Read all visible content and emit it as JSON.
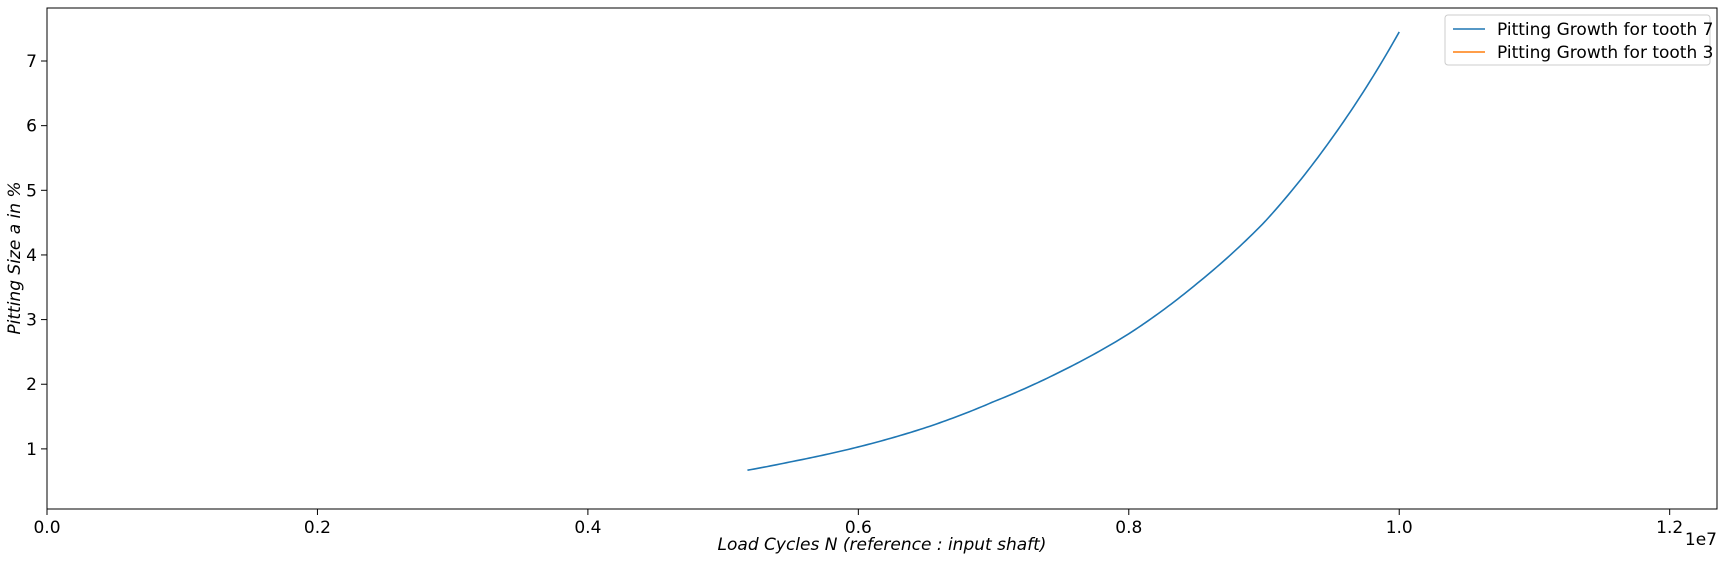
{
  "chart_data": {
    "type": "line",
    "title": "",
    "xlabel": "Load Cycles N (reference :  input shaft)",
    "ylabel": "Pitting Size a in %",
    "x_offset_label": "1e7",
    "xlim": [
      0,
      12350000
    ],
    "ylim": [
      0.07,
      7.82
    ],
    "x_ticks": [
      0,
      2000000,
      4000000,
      6000000,
      8000000,
      10000000,
      12000000
    ],
    "x_tick_labels": [
      "0.0",
      "0.2",
      "0.4",
      "0.6",
      "0.8",
      "1.0",
      "1.2"
    ],
    "y_ticks": [
      1,
      2,
      3,
      4,
      5,
      6,
      7
    ],
    "y_tick_labels": [
      "1",
      "2",
      "3",
      "4",
      "5",
      "6",
      "7"
    ],
    "grid": false,
    "legend_position": "upper right",
    "series": [
      {
        "name": "Pitting Growth for tooth 7",
        "color": "#1f77b4",
        "x": [
          5180000,
          5500000,
          6000000,
          6500000,
          7000000,
          7500000,
          8000000,
          8500000,
          9000000,
          9500000,
          10000000
        ],
        "y": [
          0.67,
          0.8,
          1.03,
          1.33,
          1.73,
          2.2,
          2.78,
          3.55,
          4.5,
          5.8,
          7.45
        ]
      },
      {
        "name": "Pitting Growth for tooth 3",
        "color": "#ff7f0e",
        "x": [],
        "y": []
      }
    ]
  }
}
